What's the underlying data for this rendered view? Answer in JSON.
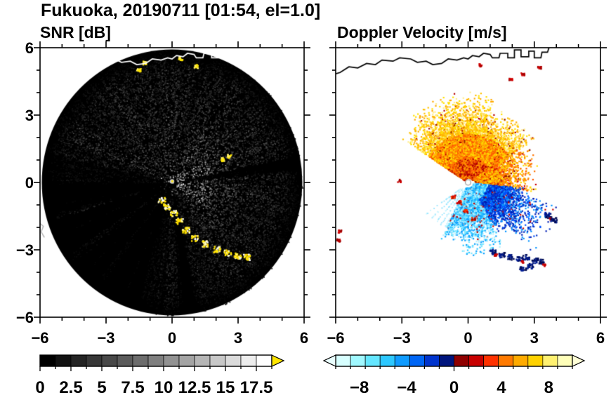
{
  "figure": {
    "title": "Fukuoka, 20190711 [01:54, el=1.0]"
  },
  "panels": [
    {
      "title": "SNR [dB]",
      "x_tick_values": [
        -6,
        -3,
        0,
        3,
        6
      ],
      "x_tick_labels": [
        "−6",
        "−3",
        "0",
        "3",
        "6"
      ],
      "y_tick_values": [
        6,
        3,
        0,
        -3,
        -6
      ],
      "y_tick_labels": [
        "6",
        "3",
        "0",
        "−3",
        "−6"
      ]
    },
    {
      "title": "Doppler Velocity [m/s]",
      "x_tick_values": [
        -6,
        -3,
        0,
        3,
        6
      ],
      "x_tick_labels": [
        "−6",
        "−3",
        "0",
        "3",
        "6"
      ],
      "y_tick_values": [
        6,
        3,
        0,
        -3,
        -6
      ],
      "y_tick_labels": []
    }
  ],
  "colorbars": [
    {
      "panel": "SNR [dB]",
      "min": 0,
      "max": 18.75,
      "segment_step": 1.25,
      "tick_values": [
        0,
        2.5,
        5,
        7.5,
        10,
        12.5,
        15,
        17.5
      ],
      "tick_labels": [
        "0",
        "2.5",
        "5",
        "7.5",
        "10",
        "12.5",
        "15",
        "17.5"
      ],
      "colors": [
        "#000000",
        "#121212",
        "#242424",
        "#373737",
        "#494949",
        "#5b5b5b",
        "#6d6d6d",
        "#7f7f7f",
        "#929292",
        "#a4a4a4",
        "#b6b6b6",
        "#c8c8c8",
        "#dbdbdb",
        "#ededed",
        "#ffffff"
      ],
      "over_arrow_color": "#ffe600"
    },
    {
      "panel": "Doppler Velocity [m/s]",
      "min": -10,
      "max": 10,
      "segment_step": 1.25,
      "tick_values": [
        -8,
        -4,
        0,
        4,
        8
      ],
      "tick_labels": [
        "−8",
        "−4",
        "0",
        "4",
        "8"
      ],
      "colors": [
        "#d7ffff",
        "#a0f8ff",
        "#64e6ff",
        "#2dc8ff",
        "#0f9bff",
        "#0066f5",
        "#0034cd",
        "#00157d",
        "#8f0000",
        "#c80000",
        "#ff3200",
        "#ff7a00",
        "#ffab00",
        "#ffd200",
        "#fff170",
        "#ffffb9"
      ],
      "under_arrow_color": "#eaffff",
      "over_arrow_color": "#ffffd7"
    }
  ],
  "coastline": [
    [
      -6.45,
      4.7
    ],
    [
      -5.8,
      4.9
    ],
    [
      -5.4,
      5.15
    ],
    [
      -5.0,
      5.1
    ],
    [
      -4.6,
      5.3
    ],
    [
      -4.2,
      5.25
    ],
    [
      -3.9,
      5.45
    ],
    [
      -3.4,
      5.4
    ],
    [
      -3.1,
      5.55
    ],
    [
      -2.6,
      5.5
    ],
    [
      -2.3,
      5.35
    ],
    [
      -1.9,
      5.4
    ],
    [
      -1.6,
      5.25
    ],
    [
      -1.2,
      5.3
    ],
    [
      -0.9,
      5.5
    ],
    [
      -0.5,
      5.45
    ],
    [
      -0.2,
      5.55
    ],
    [
      0.0,
      5.5
    ],
    [
      0.2,
      5.65
    ],
    [
      0.5,
      5.6
    ],
    [
      0.7,
      5.75
    ],
    [
      1.0,
      5.7
    ],
    [
      1.1,
      5.55
    ],
    [
      1.4,
      5.55
    ],
    [
      1.45,
      5.75
    ],
    [
      1.8,
      5.75
    ],
    [
      1.8,
      5.55
    ],
    [
      2.1,
      5.55
    ],
    [
      2.1,
      5.9
    ],
    [
      2.4,
      5.9
    ],
    [
      2.4,
      5.6
    ],
    [
      2.75,
      5.6
    ],
    [
      2.75,
      5.85
    ],
    [
      3.0,
      5.85
    ],
    [
      3.0,
      5.55
    ],
    [
      3.3,
      5.55
    ],
    [
      3.35,
      5.8
    ],
    [
      3.6,
      5.8
    ],
    [
      3.7,
      6.1
    ],
    [
      3.75,
      6.6
    ]
  ],
  "chart_data": [
    {
      "type": "heatmap",
      "geometry": "radar-ppi",
      "title": "SNR [dB]",
      "units": "dB",
      "xlim": [
        -6,
        6
      ],
      "ylim": [
        -6,
        6
      ],
      "x_ticks": [
        -6,
        -3,
        0,
        3,
        6
      ],
      "y_ticks": [
        -6,
        -3,
        0,
        3,
        6
      ],
      "scan_radius": 5.92,
      "center": [
        0,
        0
      ],
      "colormap": {
        "min": 0,
        "max": 18.75,
        "ticks": [
          0,
          2.5,
          5,
          7.5,
          10,
          12.5,
          15,
          17.5
        ],
        "style": "grayscale, yellow over-range"
      },
      "features": {
        "background": "black disk of low-SNR speckle noise",
        "bright_sector_azimuth_deg": [
          340,
          150
        ],
        "inner_bright_sector_azimuth_deg": [
          25,
          140
        ],
        "nw_gray_wedge_azimuth_deg": [
          292,
          338
        ],
        "blocked_sectors_azimuth_deg": [
          [
            196,
            214
          ],
          [
            218,
            232
          ],
          [
            236,
            252
          ],
          [
            256,
            268
          ],
          [
            168,
            176
          ],
          [
            78,
            84
          ]
        ],
        "strong_echo_chain": [
          [
            -0.5,
            -0.75
          ],
          [
            -0.25,
            -1.05
          ],
          [
            0.05,
            -1.35
          ],
          [
            0.3,
            -1.7
          ],
          [
            0.6,
            -2.1
          ],
          [
            1.0,
            -2.45
          ],
          [
            1.5,
            -2.7
          ],
          [
            2.0,
            -2.95
          ],
          [
            2.5,
            -3.1
          ],
          [
            2.95,
            -3.25
          ],
          [
            3.35,
            -3.3
          ]
        ],
        "strong_echo_spots": [
          [
            2.3,
            1.05
          ],
          [
            2.55,
            1.2
          ],
          [
            -1.55,
            5.05
          ],
          [
            -1.3,
            5.35
          ],
          [
            0.35,
            5.55
          ],
          [
            1.05,
            5.2
          ]
        ],
        "radar_site_dot": [
          0,
          0
        ]
      }
    },
    {
      "type": "heatmap",
      "geometry": "radar-ppi",
      "title": "Doppler Velocity [m/s]",
      "units": "m/s",
      "xlim": [
        -6,
        6
      ],
      "ylim": [
        -6,
        6
      ],
      "x_ticks": [
        -6,
        -3,
        0,
        3,
        6
      ],
      "y_ticks": [
        -6,
        -3,
        0,
        3,
        6
      ],
      "colormap": {
        "min": -10,
        "max": 10,
        "ticks": [
          -8,
          -4,
          0,
          4,
          8
        ],
        "style": "cyan-blue-navy negative, red-orange-yellow positive"
      },
      "features": {
        "away_fan": {
          "azimuth_deg": [
            -57,
            57
          ],
          "radius": [
            0.2,
            3.8
          ],
          "velocity_range": [
            2,
            9
          ]
        },
        "away_fan_east_extension": {
          "azimuth_deg": [
            55,
            98
          ],
          "radius": [
            0.3,
            3.3
          ]
        },
        "toward_region": {
          "azimuth_deg": [
            95,
            207
          ],
          "radius": [
            0.2,
            2.8
          ],
          "velocity_range": [
            -8,
            -1
          ]
        },
        "toward_tongue": {
          "azimuth_deg": [
            103,
            137
          ],
          "radius": [
            2.5,
            4.35
          ]
        },
        "cyan_rays_azimuth_deg": [
          206,
          238
        ],
        "aliasing_boundary_blobs": [
          [
            1.1,
            -3.05
          ],
          [
            1.5,
            -3.2
          ],
          [
            1.9,
            -3.3
          ],
          [
            2.3,
            -3.35
          ],
          [
            2.6,
            -3.3
          ],
          [
            3.0,
            -3.45
          ],
          [
            3.3,
            -3.5
          ],
          [
            2.45,
            -3.8
          ],
          [
            2.8,
            -3.7
          ],
          [
            3.6,
            -1.45
          ],
          [
            3.85,
            -1.65
          ]
        ],
        "red_specks": [
          [
            -5.85,
            -2.15
          ],
          [
            -5.9,
            -2.55
          ],
          [
            -3.15,
            0.1
          ],
          [
            0.55,
            5.25
          ],
          [
            2.45,
            4.85
          ],
          [
            3.2,
            5.15
          ],
          [
            1.9,
            4.6
          ]
        ],
        "red_patch_near_center": [
          [
            -0.45,
            -0.85
          ],
          [
            -0.15,
            -1.25
          ],
          [
            0.2,
            -1.6
          ],
          [
            -0.7,
            -0.6
          ]
        ],
        "radar_site_dot": [
          0,
          0
        ]
      }
    }
  ]
}
